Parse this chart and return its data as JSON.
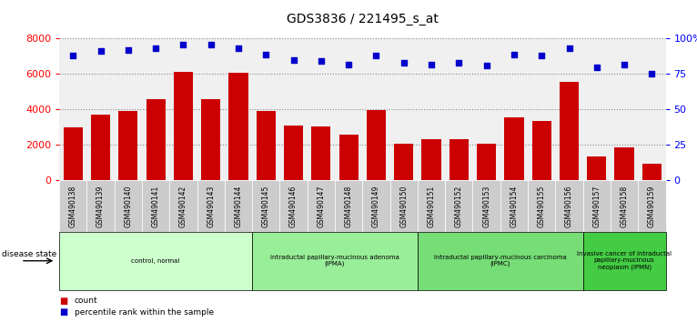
{
  "title": "GDS3836 / 221495_s_at",
  "samples": [
    "GSM490138",
    "GSM490139",
    "GSM490140",
    "GSM490141",
    "GSM490142",
    "GSM490143",
    "GSM490144",
    "GSM490145",
    "GSM490146",
    "GSM490147",
    "GSM490148",
    "GSM490149",
    "GSM490150",
    "GSM490151",
    "GSM490152",
    "GSM490153",
    "GSM490154",
    "GSM490155",
    "GSM490156",
    "GSM490157",
    "GSM490158",
    "GSM490159"
  ],
  "counts": [
    3000,
    3700,
    3900,
    4600,
    6100,
    4600,
    6050,
    3900,
    3100,
    3050,
    2600,
    3950,
    2050,
    2300,
    2300,
    2050,
    3550,
    3350,
    5550,
    1350,
    1850,
    950
  ],
  "percentiles": [
    88,
    91,
    92,
    93,
    96,
    96,
    93,
    89,
    85,
    84,
    82,
    88,
    83,
    82,
    83,
    81,
    89,
    88,
    93,
    80,
    82,
    75
  ],
  "bar_color": "#cc0000",
  "dot_color": "#0000cc",
  "ylim_left": [
    0,
    8000
  ],
  "ylim_right": [
    0,
    100
  ],
  "yticks_left": [
    0,
    2000,
    4000,
    6000,
    8000
  ],
  "yticks_right": [
    0,
    25,
    50,
    75,
    100
  ],
  "ytick_labels_right": [
    "0",
    "25",
    "50",
    "75",
    "100%"
  ],
  "disease_groups": [
    {
      "label": "control, normal",
      "start": 0,
      "end": 7,
      "color": "#ccffcc"
    },
    {
      "label": "intraductal papillary-mucinous adenoma\n(IPMA)",
      "start": 7,
      "end": 13,
      "color": "#99ee99"
    },
    {
      "label": "intraductal papillary-mucinous carcinoma\n(IPMC)",
      "start": 13,
      "end": 19,
      "color": "#77dd77"
    },
    {
      "label": "invasive cancer of intraductal\npapillary-mucinous\nneoplasm (IPMN)",
      "start": 19,
      "end": 22,
      "color": "#44cc44"
    }
  ],
  "disease_state_label": "disease state",
  "legend_count_label": "count",
  "legend_pct_label": "percentile rank within the sample",
  "background_color": "#ffffff",
  "xtick_bg_color": "#cccccc"
}
